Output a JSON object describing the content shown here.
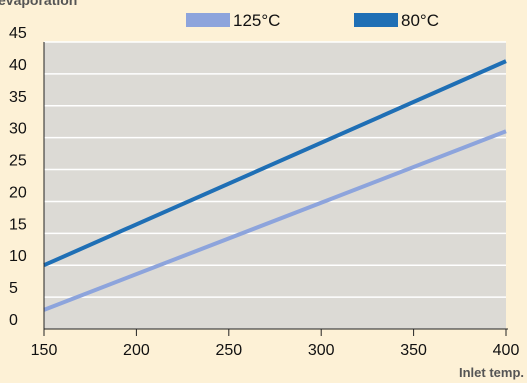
{
  "chart_data": {
    "type": "line",
    "title": "evaporation",
    "xlabel": "Inlet temp.",
    "ylabel": "",
    "xlim": [
      150,
      400
    ],
    "ylim": [
      0,
      45
    ],
    "x_ticks": [
      150,
      200,
      250,
      300,
      350,
      400
    ],
    "y_ticks": [
      0,
      5,
      10,
      15,
      20,
      25,
      30,
      35,
      40,
      45
    ],
    "grid": "horizontal",
    "legend_position": "top",
    "series": [
      {
        "name": "125°C",
        "color": "#8da4dc",
        "x": [
          150,
          400
        ],
        "y": [
          3,
          31
        ]
      },
      {
        "name": "80°C",
        "color": "#1f6fb5",
        "x": [
          150,
          400
        ],
        "y": [
          10,
          42
        ]
      }
    ],
    "colors": {
      "background": "#fdf1d6",
      "plot_area": "#dcdad5",
      "grid": "#ffffff",
      "axis": "#222222"
    }
  }
}
